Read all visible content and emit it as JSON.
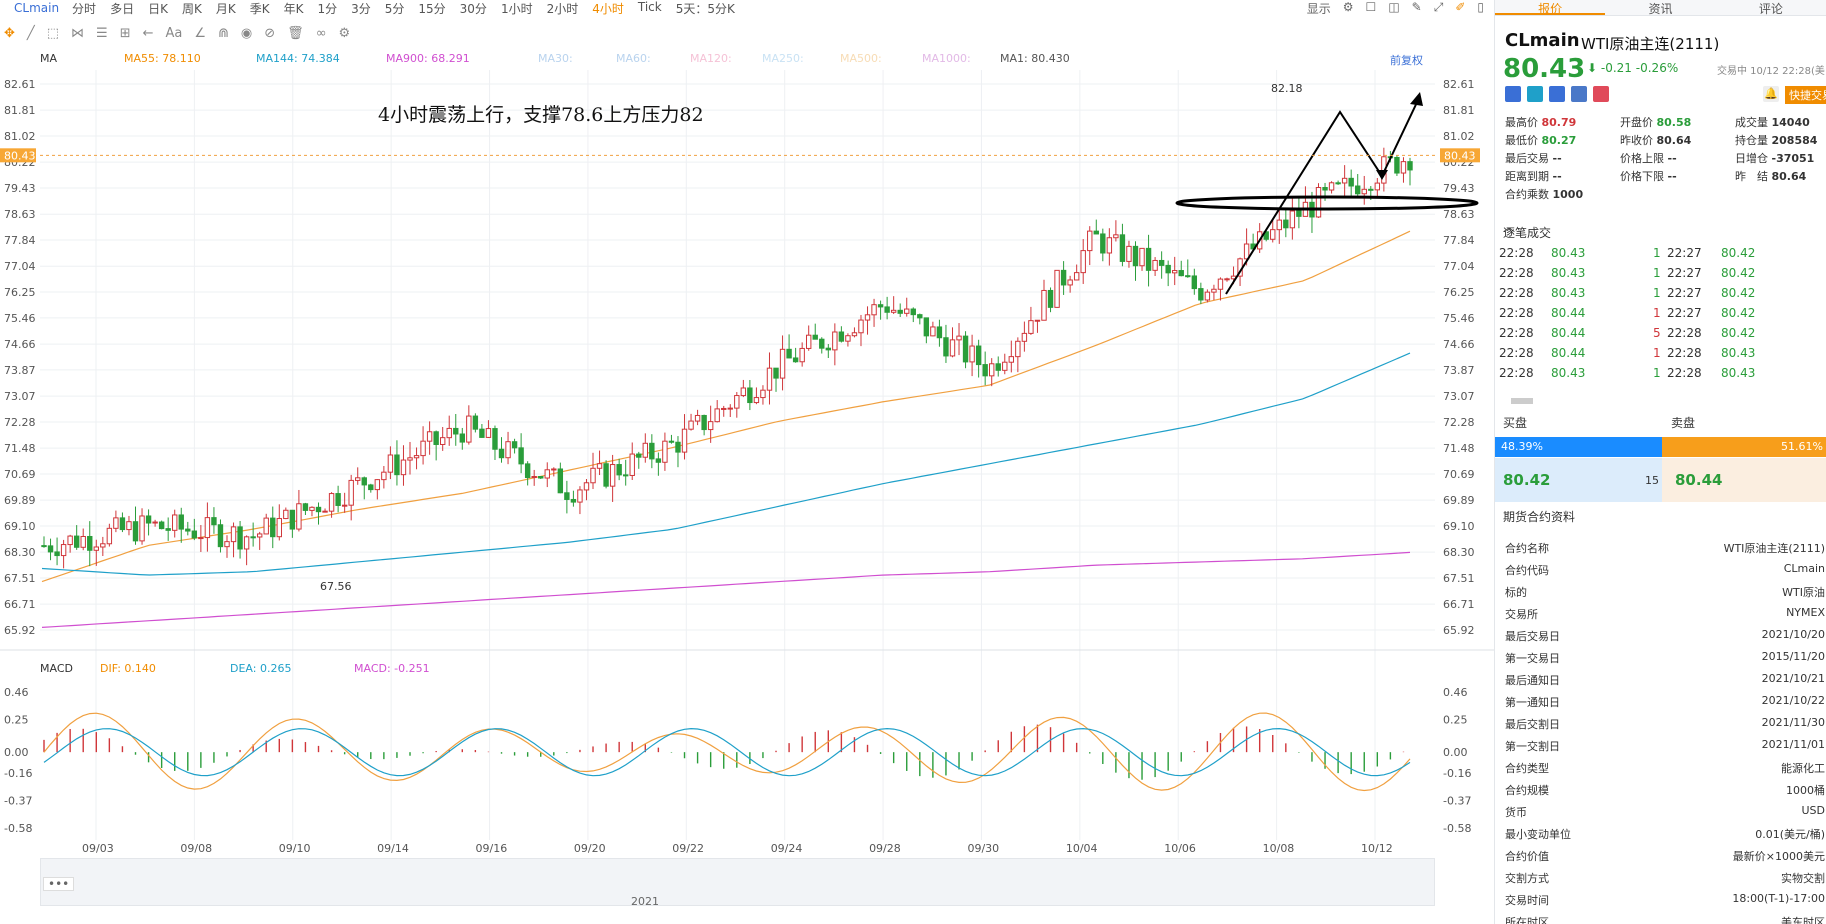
{
  "toolbar": {
    "symbol": "CLmain",
    "timeframes": [
      "分时",
      "多日",
      "日K",
      "周K",
      "月K",
      "季K",
      "年K",
      "1分",
      "3分",
      "5分",
      "15分",
      "30分",
      "1小时",
      "2小时",
      "4小时",
      "Tick",
      "5天：5分K"
    ],
    "active_timeframe": "4小时",
    "display_label": "显示"
  },
  "ma_legend": [
    {
      "label": "MA",
      "color": "#333333"
    },
    {
      "label": "MA55: 78.110",
      "color": "#f08c00"
    },
    {
      "label": "MA144: 74.384",
      "color": "#1fa0c9"
    },
    {
      "label": "MA900: 68.291",
      "color": "#d04fd0"
    },
    {
      "label": "MA30:",
      "color": "#b9d3ee"
    },
    {
      "label": "MA60:",
      "color": "#b9d3ee"
    },
    {
      "label": "MA120:",
      "color": "#f5c2d6"
    },
    {
      "label": "MA250:",
      "color": "#c9e2f4"
    },
    {
      "label": "MA500:",
      "color": "#f7dcb5"
    },
    {
      "label": "MA1000:",
      "color": "#e2b9e6"
    },
    {
      "label": "MA1: 80.430",
      "color": "#555555"
    }
  ],
  "fuquan_label": "前复权",
  "annotation": "4小时震荡上行，支撑78.6上方压力82",
  "price_axis": [
    "82.61",
    "81.81",
    "81.02",
    "80.22",
    "79.43",
    "78.63",
    "77.84",
    "77.04",
    "76.25",
    "75.46",
    "74.66",
    "73.87",
    "73.07",
    "72.28",
    "71.48",
    "70.69",
    "69.89",
    "69.10",
    "68.30",
    "67.51",
    "66.71",
    "65.92"
  ],
  "current_price_tag": "80.43",
  "high_label": "82.18",
  "low_label": "67.56",
  "date_axis": [
    "09/03",
    "09/08",
    "09/10",
    "09/14",
    "09/16",
    "09/20",
    "09/22",
    "09/24",
    "09/28",
    "09/30",
    "10/04",
    "10/06",
    "10/08",
    "10/12"
  ],
  "macd_legend": [
    {
      "label": "MACD",
      "color": "#333333"
    },
    {
      "label": "DIF: 0.140",
      "color": "#f08c00"
    },
    {
      "label": "DEA: 0.265",
      "color": "#1fa0c9"
    },
    {
      "label": "MACD: -0.251",
      "color": "#d04fd0"
    }
  ],
  "macd_axis": [
    "0.46",
    "0.25",
    "0.00",
    "-0.16",
    "-0.37",
    "-0.58"
  ],
  "navigator": {
    "year": "2021",
    "dots": "•••"
  },
  "colors": {
    "up": "#d0363a",
    "down": "#2a9d3a",
    "accent": "#f08c00",
    "link": "#3a6fd6"
  },
  "chart_data": {
    "type": "line",
    "title": "",
    "x": [
      "09/03",
      "09/08",
      "09/10",
      "09/14",
      "09/16",
      "09/20",
      "09/22",
      "09/24",
      "09/28",
      "09/30",
      "10/04",
      "10/06",
      "10/08",
      "10/12"
    ],
    "ylim": [
      65.92,
      82.61
    ],
    "series": [
      {
        "name": "MA55",
        "values": [
          67.4,
          68.5,
          69.0,
          69.6,
          70.1,
          70.8,
          71.5,
          72.3,
          72.9,
          73.4,
          74.6,
          75.9,
          76.6,
          78.11
        ]
      },
      {
        "name": "MA144",
        "values": [
          67.8,
          67.6,
          67.7,
          68.0,
          68.3,
          68.6,
          69.0,
          69.7,
          70.4,
          71.0,
          71.6,
          72.2,
          73.0,
          74.384
        ]
      },
      {
        "name": "MA900",
        "values": [
          66.0,
          66.2,
          66.4,
          66.6,
          66.8,
          67.0,
          67.2,
          67.4,
          67.6,
          67.7,
          67.9,
          68.0,
          68.1,
          68.291
        ]
      },
      {
        "values": [
          68.5,
          69.1,
          68.8,
          70.4,
          72.1,
          70.2,
          71.6,
          74.0,
          75.9,
          73.9,
          77.9,
          76.3,
          78.8,
          80.43
        ]
      }
    ]
  },
  "panel": {
    "tabs": [
      "报价",
      "资讯",
      "评论"
    ],
    "active_tab": "报价",
    "code": "CLmain",
    "name": "WTI原油主连(2111)",
    "price": "80.43",
    "change": "-0.21",
    "change_pct": "-0.26%",
    "time": "交易中 10/12 22:28(美",
    "fast_trade": "快捷交易",
    "stats": [
      {
        "k": "最高价",
        "v": "80.79",
        "c": "#d0363a"
      },
      {
        "k": "最低价",
        "v": "80.27",
        "c": "#2a9d3a"
      },
      {
        "k": "最后交易",
        "v": "--",
        "c": "#333333"
      },
      {
        "k": "距离到期",
        "v": "--",
        "c": "#333333"
      },
      {
        "k": "合约乘数",
        "v": "1000",
        "c": "#333333"
      },
      {
        "k": "开盘价",
        "v": "80.58",
        "c": "#2a9d3a"
      },
      {
        "k": "昨收价",
        "v": "80.64",
        "c": "#333333"
      },
      {
        "k": "价格上限",
        "v": "--",
        "c": "#333333"
      },
      {
        "k": "价格下限",
        "v": "--",
        "c": "#333333"
      },
      {
        "k": "成交量",
        "v": "14040",
        "c": "#333333"
      },
      {
        "k": "持仓量",
        "v": "208584",
        "c": "#333333"
      },
      {
        "k": "日增仓",
        "v": "-37051",
        "c": "#333333"
      },
      {
        "k": "昨　结",
        "v": "80.64",
        "c": "#333333"
      }
    ],
    "trades_title": "逐笔成交",
    "trades": [
      {
        "t1": "22:28",
        "p1": "80.43",
        "q": "1",
        "qc": "#2a9d3a",
        "t2": "22:27",
        "p2": "80.42"
      },
      {
        "t1": "22:28",
        "p1": "80.43",
        "q": "1",
        "qc": "#2a9d3a",
        "t2": "22:27",
        "p2": "80.42"
      },
      {
        "t1": "22:28",
        "p1": "80.43",
        "q": "1",
        "qc": "#2a9d3a",
        "t2": "22:27",
        "p2": "80.42"
      },
      {
        "t1": "22:28",
        "p1": "80.44",
        "q": "1",
        "qc": "#d0363a",
        "t2": "22:27",
        "p2": "80.42"
      },
      {
        "t1": "22:28",
        "p1": "80.44",
        "q": "5",
        "qc": "#d0363a",
        "t2": "22:28",
        "p2": "80.42"
      },
      {
        "t1": "22:28",
        "p1": "80.44",
        "q": "1",
        "qc": "#d0363a",
        "t2": "22:28",
        "p2": "80.43"
      },
      {
        "t1": "22:28",
        "p1": "80.43",
        "q": "1",
        "qc": "#2a9d3a",
        "t2": "22:28",
        "p2": "80.43"
      }
    ],
    "buy_label": "买盘",
    "sell_label": "卖盘",
    "buy_pct": "48.39%",
    "sell_pct": "51.61%",
    "bid_price": "80.42",
    "bid_qty": "15",
    "ask_price": "80.44",
    "contract_title": "期货合约资料",
    "contract": [
      {
        "k": "合约名称",
        "v": "WTI原油主连(2111)"
      },
      {
        "k": "合约代码",
        "v": "CLmain"
      },
      {
        "k": "标的",
        "v": "WTI原油"
      },
      {
        "k": "交易所",
        "v": "NYMEX"
      },
      {
        "k": "最后交易日",
        "v": "2021/10/20"
      },
      {
        "k": "第一交易日",
        "v": "2015/11/20"
      },
      {
        "k": "最后通知日",
        "v": "2021/10/21"
      },
      {
        "k": "第一通知日",
        "v": "2021/10/22"
      },
      {
        "k": "最后交割日",
        "v": "2021/11/30"
      },
      {
        "k": "第一交割日",
        "v": "2021/11/01"
      },
      {
        "k": "合约类型",
        "v": "能源化工"
      },
      {
        "k": "合约规模",
        "v": "1000桶"
      },
      {
        "k": "货币",
        "v": "USD"
      },
      {
        "k": "最小变动单位",
        "v": "0.01(美元/桶)"
      },
      {
        "k": "合约价值",
        "v": "最新价×1000美元"
      },
      {
        "k": "交割方式",
        "v": "实物交割"
      },
      {
        "k": "交易时间",
        "v": "18:00(T-1)-17:00"
      },
      {
        "k": "所在时区",
        "v": "美东时区"
      }
    ]
  }
}
